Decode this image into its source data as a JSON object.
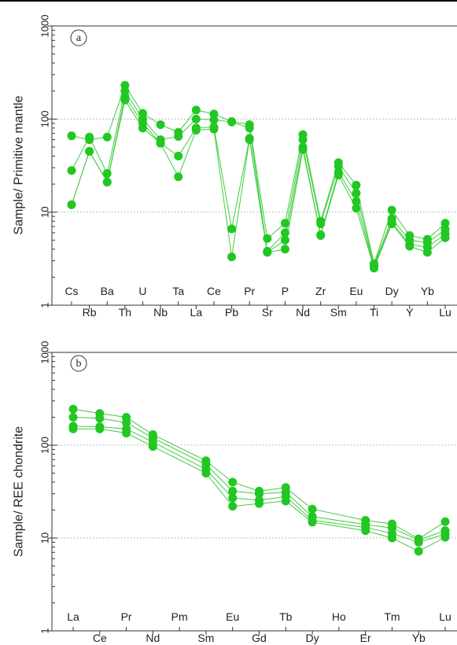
{
  "colors": {
    "series": "#22c722",
    "line": "#3fcc3f",
    "axis": "#333333",
    "grid": "#a8a8a8"
  },
  "chart_data": [
    {
      "type": "line",
      "panel_label": "a",
      "ylabel": "Sample/ Primitive mantle",
      "yscale": "log",
      "ylim": [
        1,
        1000
      ],
      "yticks": [
        "1",
        "10",
        "100",
        "1000"
      ],
      "grid": "dotted horizontal at 10, 100",
      "categories": [
        "Cs",
        "Rb",
        "Ba",
        "Th",
        "U",
        "Nb",
        "Ta",
        "La",
        "Ce",
        "Pb",
        "Pr",
        "Sr",
        "P",
        "Nd",
        "Zr",
        "Sm",
        "Eu",
        "Ti",
        "Dy",
        "Y",
        "Yb",
        "Lu"
      ],
      "series": [
        {
          "values": [
            66,
            60,
            64,
            230,
            115,
            87,
            72,
            125,
            113,
            94,
            87,
            5.2,
            7.6,
            68,
            8.0,
            34,
            19.5,
            2.8,
            10.5,
            5.6,
            5.1,
            7.6
          ]
        },
        {
          "values": [
            28,
            64,
            26,
            200,
            100,
            60,
            65,
            100,
            98,
            93,
            80,
            3.8,
            6.0,
            60,
            7.5,
            31,
            16,
            2.7,
            8.5,
            5.0,
            4.7,
            6.5
          ]
        },
        {
          "values": [
            12,
            45,
            21,
            175,
            90,
            55,
            40,
            80,
            82,
            6.6,
            62,
            3.7,
            5.0,
            50,
            5.7,
            27,
            13,
            2.6,
            7.8,
            4.5,
            4.2,
            5.8
          ]
        },
        {
          "values": [
            12,
            45,
            21,
            160,
            80,
            55,
            24,
            76,
            78,
            3.3,
            60,
            3.7,
            4.0,
            47,
            5.6,
            25,
            11,
            2.5,
            7.5,
            4.3,
            3.7,
            5.3
          ]
        }
      ]
    },
    {
      "type": "line",
      "panel_label": "b",
      "ylabel": "Sample/ REE chondrite",
      "yscale": "log",
      "ylim": [
        1,
        1000
      ],
      "yticks": [
        "1",
        "10",
        "100",
        "1000"
      ],
      "grid": "dotted horizontal at 10, 100",
      "categories": [
        "La",
        "Ce",
        "Pr",
        "Nd",
        "Pm",
        "Sm",
        "Eu",
        "Gd",
        "Tb",
        "Dy",
        "Ho",
        "Er",
        "Tm",
        "Yb",
        "Lu"
      ],
      "series": [
        {
          "values": [
            245,
            220,
            200,
            130,
            null,
            68,
            40,
            32,
            35,
            20.5,
            null,
            15.5,
            14.2,
            9.8,
            15
          ]
        },
        {
          "values": [
            200,
            195,
            175,
            120,
            null,
            62,
            32,
            30,
            31,
            17,
            null,
            14,
            12.8,
            9.5,
            12
          ]
        },
        {
          "values": [
            160,
            158,
            150,
            108,
            null,
            55,
            27,
            25.5,
            28,
            15.5,
            null,
            13,
            11.2,
            9.0,
            11
          ]
        },
        {
          "values": [
            150,
            150,
            135,
            97,
            null,
            50,
            22,
            23.5,
            25,
            14.8,
            null,
            12,
            10,
            7.2,
            10.2
          ]
        }
      ]
    }
  ]
}
